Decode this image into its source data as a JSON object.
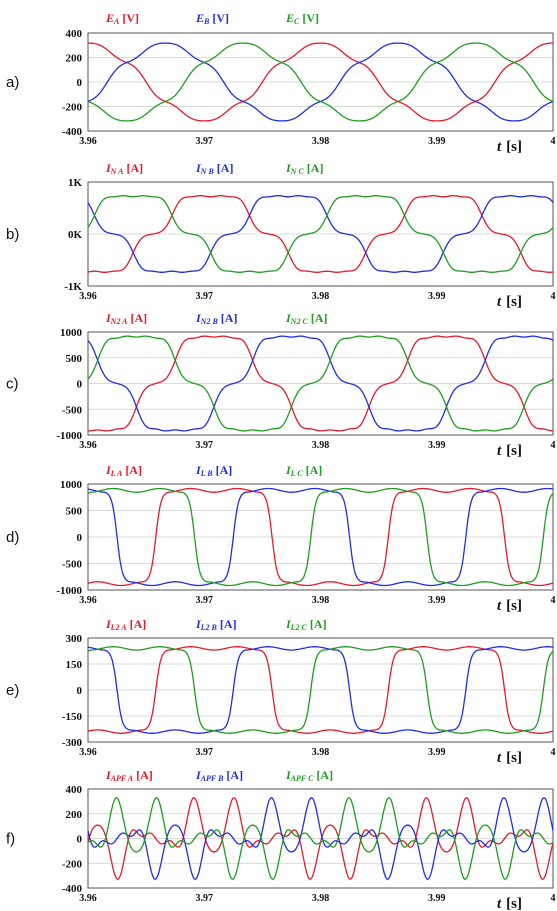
{
  "colors": {
    "phase_a": "#e8192c",
    "phase_b": "#1f2ee6",
    "phase_c": "#1e9e1e",
    "frame": "#555555",
    "grid": "#cfcfcf"
  },
  "x_axis": {
    "ticks": [
      "3.96",
      "3.97",
      "3.98",
      "3.99",
      "4"
    ],
    "label_italic": "t",
    "label_unit": "[s]",
    "range": [
      3.96,
      4.0
    ]
  },
  "chart_data": [
    {
      "type": "line",
      "panel_label": "a)",
      "legend": [
        {
          "sym": "E",
          "sub": "A",
          "unit": "[V]"
        },
        {
          "sym": "E",
          "sub": "B",
          "unit": "[V]"
        },
        {
          "sym": "E",
          "sub": "C",
          "unit": "[V]"
        }
      ],
      "yticks": [
        "400",
        "200",
        "0",
        "-200",
        "-400"
      ],
      "ylim": [
        -400,
        400
      ],
      "signal": {
        "kind": "voltage",
        "amplitude": 310,
        "h5": 0.06,
        "h7": 0.035,
        "h11": 0.0,
        "offset_deg": 90
      }
    },
    {
      "type": "line",
      "panel_label": "b)",
      "legend": [
        {
          "sym": "I",
          "sub": "N A",
          "unit": "[A]"
        },
        {
          "sym": "I",
          "sub": "N B",
          "unit": "[A]"
        },
        {
          "sym": "I",
          "sub": "N C",
          "unit": "[A]"
        }
      ],
      "yticks": [
        "1K",
        "0K",
        "-1K"
      ],
      "ylim": [
        -1500,
        1500
      ],
      "signal": {
        "kind": "current",
        "amplitude": 1180,
        "h5": 0.13,
        "h7": 0.06,
        "h11": 0.02,
        "offset_deg": 260
      }
    },
    {
      "type": "line",
      "panel_label": "c)",
      "legend": [
        {
          "sym": "I",
          "sub": "N2 A",
          "unit": "[A]"
        },
        {
          "sym": "I",
          "sub": "N2 B",
          "unit": "[A]"
        },
        {
          "sym": "I",
          "sub": "N2 C",
          "unit": "[A]"
        }
      ],
      "yticks": [
        "1000",
        "500",
        "0",
        "-500",
        "-1000"
      ],
      "ylim": [
        -1000,
        1000
      ],
      "signal": {
        "kind": "current",
        "amplitude": 980,
        "h5": 0.12,
        "h7": 0.06,
        "h11": 0.02,
        "offset_deg": 255
      }
    },
    {
      "type": "line",
      "panel_label": "d)",
      "legend": [
        {
          "sym": "I",
          "sub": "L A",
          "unit": "[A]"
        },
        {
          "sym": "I",
          "sub": "L B",
          "unit": "[A]"
        },
        {
          "sym": "I",
          "sub": "L C",
          "unit": "[A]"
        }
      ],
      "yticks": [
        "1000",
        "500",
        "0",
        "-500",
        "-1000"
      ],
      "ylim": [
        -1000,
        1000
      ],
      "signal": {
        "kind": "square",
        "amplitude": 880,
        "offset_deg": 255
      }
    },
    {
      "type": "line",
      "panel_label": "e)",
      "legend": [
        {
          "sym": "I",
          "sub": "L2 A",
          "unit": "[A]"
        },
        {
          "sym": "I",
          "sub": "L2 B",
          "unit": "[A]"
        },
        {
          "sym": "I",
          "sub": "L2 C",
          "unit": "[A]"
        }
      ],
      "yticks": [
        "300",
        "150",
        "0",
        "-150",
        "-300"
      ],
      "ylim": [
        -300,
        300
      ],
      "signal": {
        "kind": "square",
        "amplitude": 240,
        "offset_deg": 255
      }
    },
    {
      "type": "line",
      "panel_label": "f)",
      "legend": [
        {
          "sym": "I",
          "sub": "APF A",
          "unit": "[A]"
        },
        {
          "sym": "I",
          "sub": "APF B",
          "unit": "[A]"
        },
        {
          "sym": "I",
          "sub": "APF C",
          "unit": "[A]"
        }
      ],
      "yticks": [
        "400",
        "200",
        "0",
        "-200",
        "-400"
      ],
      "ylim": [
        -400,
        400
      ],
      "signal": {
        "kind": "apf",
        "amplitude": 90,
        "h5": 1.6,
        "h7": 1.1,
        "h11": 0.5,
        "offset_deg": 255
      }
    }
  ]
}
